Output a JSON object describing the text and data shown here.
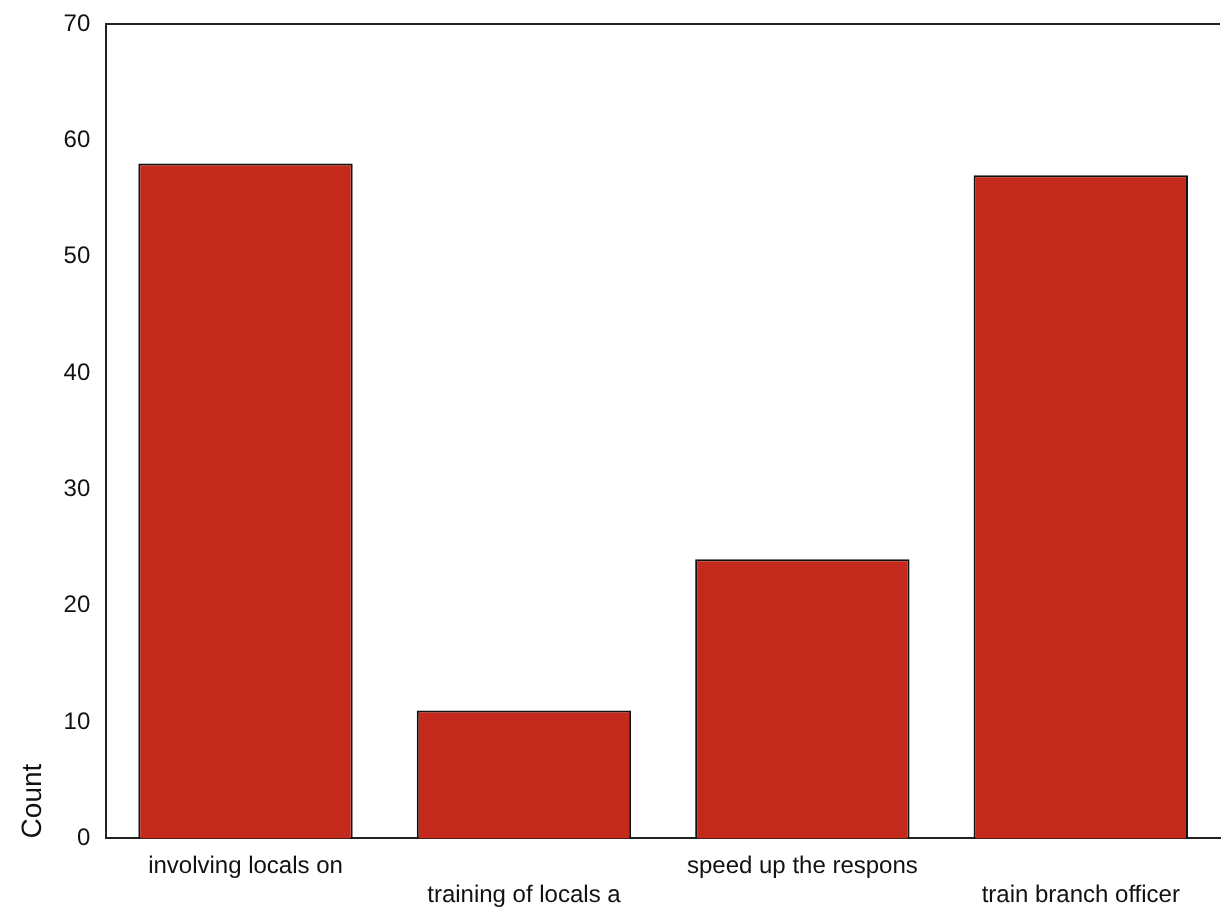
{
  "chart_data": {
    "type": "bar",
    "ylabel": "Count",
    "categories": [
      "involving locals on",
      "training of locals a",
      "speed up the respons",
      "train branch officer"
    ],
    "values": [
      58,
      11,
      24,
      57
    ],
    "color": "#c42a1c",
    "ylim": [
      0,
      70
    ],
    "yticks": [
      0,
      10,
      20,
      30,
      40,
      50,
      60,
      70
    ],
    "grid": false,
    "legend": false
  }
}
